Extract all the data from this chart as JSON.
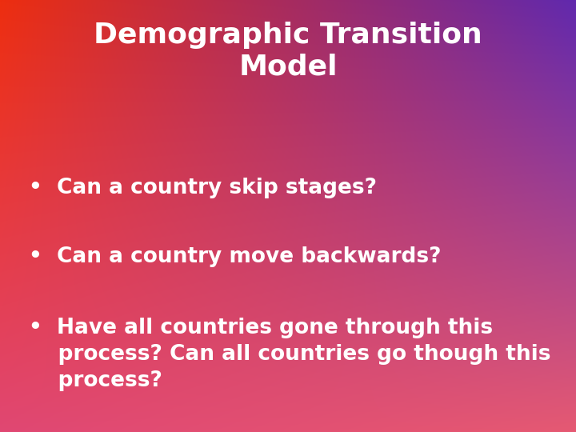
{
  "title_line1": "Demographic Transition",
  "title_line2": "Model",
  "bullet1": "Can a country skip stages?",
  "bullet2": "Can a country move backwards?",
  "bullet3_line1": "Have all countries gone through this",
  "bullet3_line2": "process? Can all countries go though this",
  "bullet3_line3": "process?",
  "text_color": "#ffffff",
  "title_fontsize": 26,
  "bullet_fontsize": 19,
  "tl": [
    0.93,
    0.18,
    0.06
  ],
  "tr": [
    0.38,
    0.16,
    0.68
  ],
  "bl": [
    0.88,
    0.28,
    0.45
  ],
  "br": [
    0.9,
    0.35,
    0.45
  ]
}
